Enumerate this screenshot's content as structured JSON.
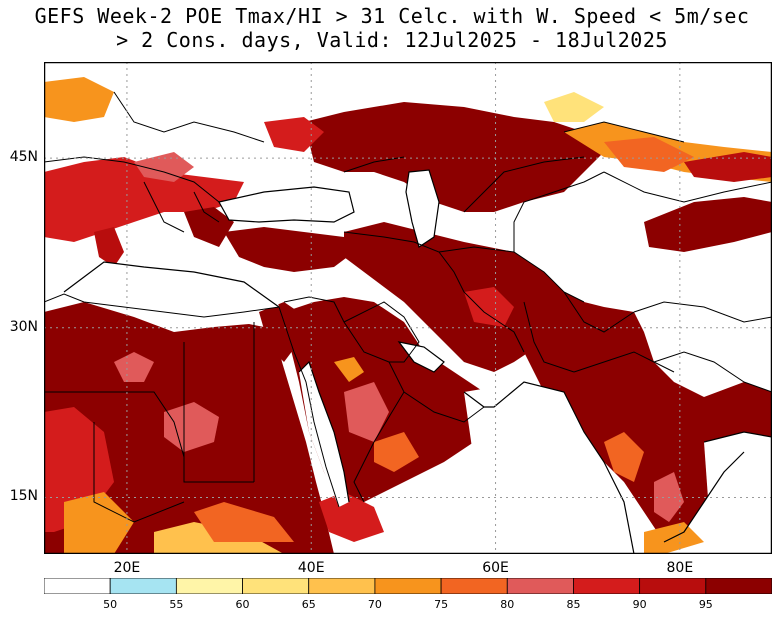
{
  "title": {
    "line1": "GEFS Week-2 POE Tmax/HI > 31 Celc. with W. Speed < 5m/sec",
    "line2": "> 2 Cons. days, Valid: 12Jul2025 - 18Jul2025"
  },
  "axes": {
    "lon_min": 11,
    "lon_max": 90,
    "lat_min": 10,
    "lat_max": 53.5,
    "x_ticks": [
      {
        "label": "20E",
        "value": 20
      },
      {
        "label": "40E",
        "value": 40
      },
      {
        "label": "60E",
        "value": 60
      },
      {
        "label": "80E",
        "value": 80
      }
    ],
    "y_ticks": [
      {
        "label": "45N",
        "value": 45
      },
      {
        "label": "30N",
        "value": 30
      },
      {
        "label": "15N",
        "value": 15
      }
    ]
  },
  "colorbar": {
    "levels": [
      "50",
      "55",
      "60",
      "65",
      "70",
      "75",
      "80",
      "85",
      "90",
      "95"
    ],
    "colors": [
      "#ffffff",
      "#a6e4f2",
      "#fff5a8",
      "#ffe27a",
      "#ffc14d",
      "#f7941d",
      "#f26522",
      "#e05a5a",
      "#d41c1c",
      "#b80d0d",
      "#8c0000"
    ]
  },
  "colors": {
    "land_white": "#ffffff",
    "sea": "#ffffff",
    "hot": "#8c0000",
    "boundary": "#000000",
    "grid": "#9a9a9a"
  }
}
